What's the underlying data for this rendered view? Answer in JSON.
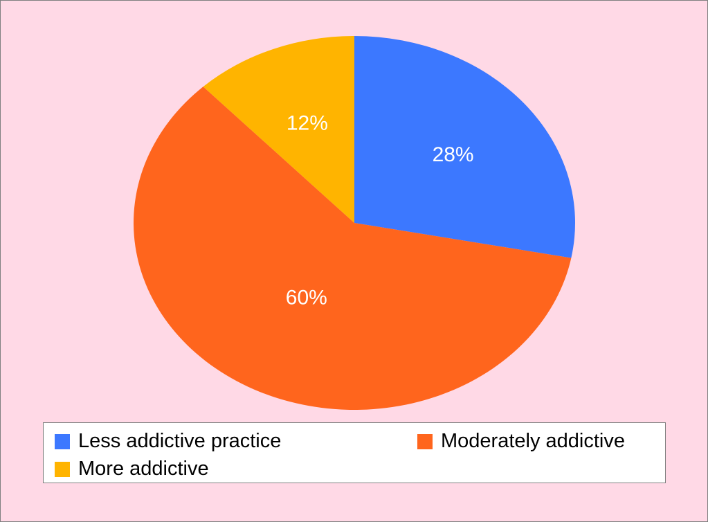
{
  "chart_data": {
    "type": "pie",
    "slices": [
      {
        "name": "Less addictive practice",
        "value": 28,
        "label": "28%",
        "color": "#3c78ff"
      },
      {
        "name": "Moderately addictive",
        "value": 60,
        "label": "60%",
        "color": "#ff651d"
      },
      {
        "name": "More addictive",
        "value": 12,
        "label": "12%",
        "color": "#ffb400"
      }
    ],
    "start_angle_deg": 0,
    "direction": "clockwise",
    "legend_placement": "bottom"
  }
}
